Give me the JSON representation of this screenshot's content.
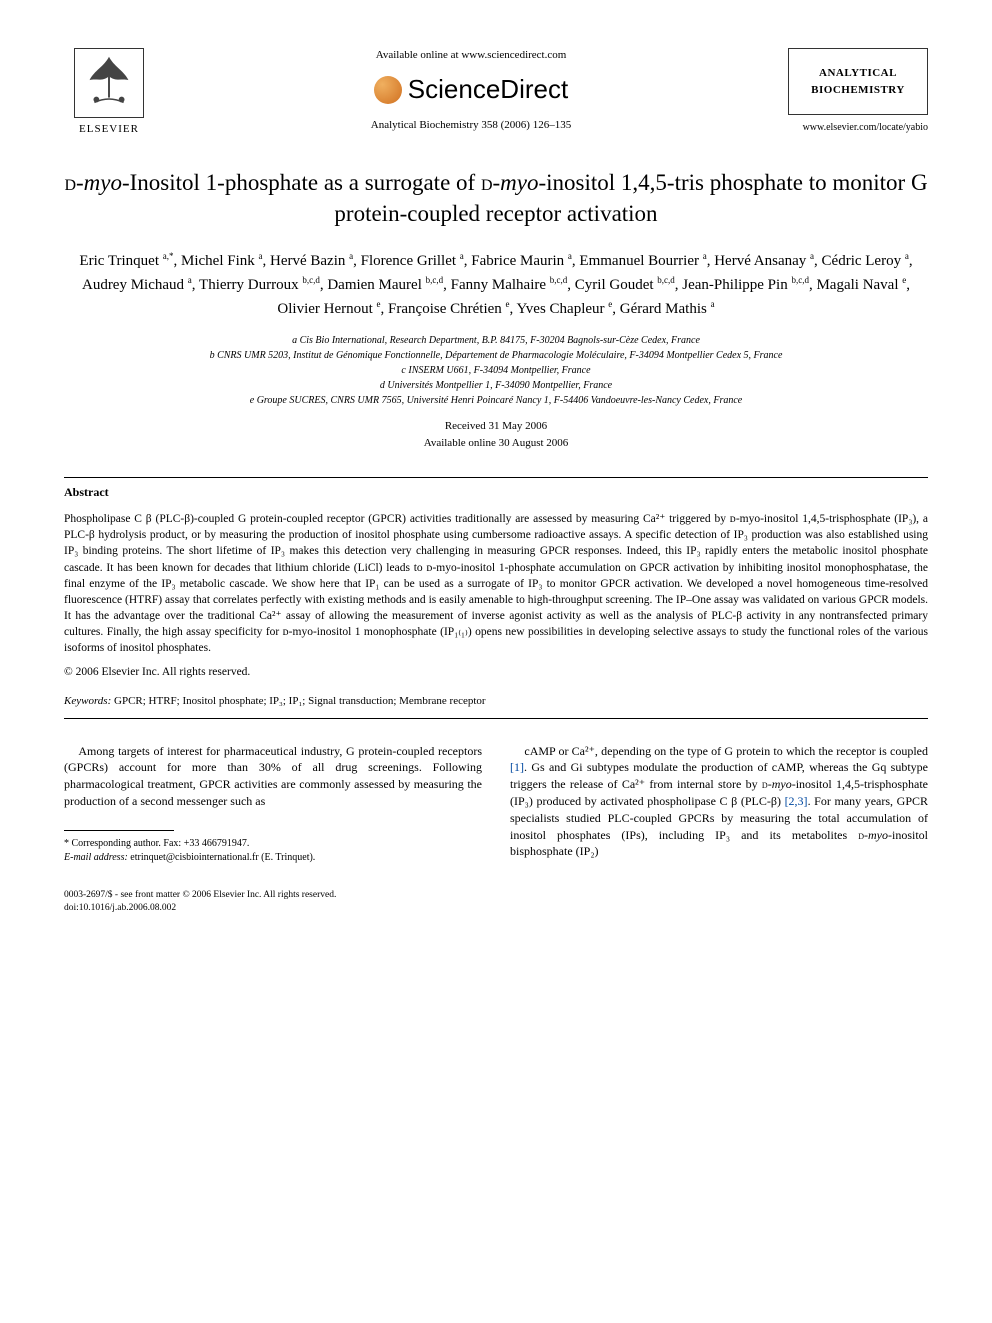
{
  "header": {
    "elsevier_label": "ELSEVIER",
    "available_text": "Available online at www.sciencedirect.com",
    "sciencedirect_label": "ScienceDirect",
    "journal_reference": "Analytical Biochemistry 358 (2006) 126–135",
    "journal_box_line1": "ANALYTICAL",
    "journal_box_line2": "BIOCHEMISTRY",
    "journal_url": "www.elsevier.com/locate/yabio"
  },
  "title_parts": {
    "p1": "d",
    "p2": "-myo-",
    "p3": "Inositol 1-phosphate as a surrogate of ",
    "p4": "d",
    "p5": "-myo-",
    "p6": "inositol 1,4,5-tris phosphate to monitor G protein-coupled receptor activation"
  },
  "authors_html": "Eric Trinquet <sup>a,*</sup>, Michel Fink <sup>a</sup>, Hervé Bazin <sup>a</sup>, Florence Grillet <sup>a</sup>, Fabrice Maurin <sup>a</sup>, Emmanuel Bourrier <sup>a</sup>, Hervé Ansanay <sup>a</sup>, Cédric Leroy <sup>a</sup>, Audrey Michaud <sup>a</sup>, Thierry Durroux <sup>b,c,d</sup>, Damien Maurel <sup>b,c,d</sup>, Fanny Malhaire <sup>b,c,d</sup>, Cyril Goudet <sup>b,c,d</sup>, Jean-Philippe Pin <sup>b,c,d</sup>, Magali Naval <sup>e</sup>, Olivier Hernout <sup>e</sup>, Françoise Chrétien <sup>e</sup>, Yves Chapleur <sup>e</sup>, Gérard Mathis <sup>a</sup>",
  "affiliations": {
    "a": "a Cis Bio International, Research Department, B.P. 84175, F-30204 Bagnols-sur-Cèze Cedex, France",
    "b": "b CNRS UMR 5203, Institut de Génomique Fonctionnelle, Département de Pharmacologie Moléculaire, F-34094 Montpellier Cedex 5, France",
    "c": "c INSERM U661, F-34094 Montpellier, France",
    "d": "d Universités Montpellier 1, F-34090 Montpellier, France",
    "e": "e Groupe SUCRES, CNRS UMR 7565, Université Henri Poincaré Nancy 1, F-54406 Vandoeuvre-les-Nancy Cedex, France"
  },
  "dates": {
    "received": "Received 31 May 2006",
    "online": "Available online 30 August 2006"
  },
  "abstract": {
    "label": "Abstract",
    "text": "Phospholipase C β (PLC-β)-coupled G protein-coupled receptor (GPCR) activities traditionally are assessed by measuring Ca²⁺ triggered by ᴅ-myo-inositol 1,4,5-trisphosphate (IP₃), a PLC-β hydrolysis product, or by measuring the production of inositol phosphate using cumbersome radioactive assays. A specific detection of IP₃ production was also established using IP₃ binding proteins. The short lifetime of IP₃ makes this detection very challenging in measuring GPCR responses. Indeed, this IP₃ rapidly enters the metabolic inositol phosphate cascade. It has been known for decades that lithium chloride (LiCl) leads to ᴅ-myo-inositol 1-phosphate accumulation on GPCR activation by inhibiting inositol monophosphatase, the final enzyme of the IP₃ metabolic cascade. We show here that IP₁ can be used as a surrogate of IP₃ to monitor GPCR activation. We developed a novel homogeneous time-resolved fluorescence (HTRF) assay that correlates perfectly with existing methods and is easily amenable to high-throughput screening. The IP–One assay was validated on various GPCR models. It has the advantage over the traditional Ca²⁺ assay of allowing the measurement of inverse agonist activity as well as the analysis of PLC-β activity in any nontransfected primary cultures. Finally, the high assay specificity for ᴅ-myo-inositol 1 monophosphate (IP₁₍₁₎) opens new possibilities in developing selective assays to study the functional roles of the various isoforms of inositol phosphates.",
    "copyright": "© 2006 Elsevier Inc. All rights reserved."
  },
  "keywords": {
    "label": "Keywords:",
    "text": " GPCR; HTRF; Inositol phosphate; IP₃; IP₁; Signal transduction; Membrane receptor"
  },
  "body": {
    "col1": "Among targets of interest for pharmaceutical industry, G protein-coupled receptors (GPCRs) account for more than 30% of all drug screenings. Following pharmacological treatment, GPCR activities are commonly assessed by measuring the production of a second messenger such as",
    "col2": "cAMP or Ca²⁺, depending on the type of G protein to which the receptor is coupled [1]. Gs and Gi subtypes modulate the production of cAMP, whereas the Gq subtype triggers the release of Ca²⁺ from internal store by ᴅ-myo-inositol 1,4,5-trisphosphate (IP₃) produced by activated phospholipase C β (PLC-β) [2,3]. For many years, GPCR specialists studied PLC-coupled GPCRs by measuring the total accumulation of inositol phosphates (IPs), including IP₃ and its metabolites ᴅ-myo-inositol bisphosphate (IP₂)"
  },
  "footnote": {
    "corresponding": "* Corresponding author. Fax: +33 466791947.",
    "email_label": "E-mail address:",
    "email": " etrinquet@cisbiointernational.fr (E. Trinquet)."
  },
  "footer": {
    "line1": "0003-2697/$ - see front matter © 2006 Elsevier Inc. All rights reserved.",
    "doi": "doi:10.1016/j.ab.2006.08.002"
  },
  "colors": {
    "link": "#0048a0",
    "text": "#000000",
    "background": "#ffffff"
  }
}
